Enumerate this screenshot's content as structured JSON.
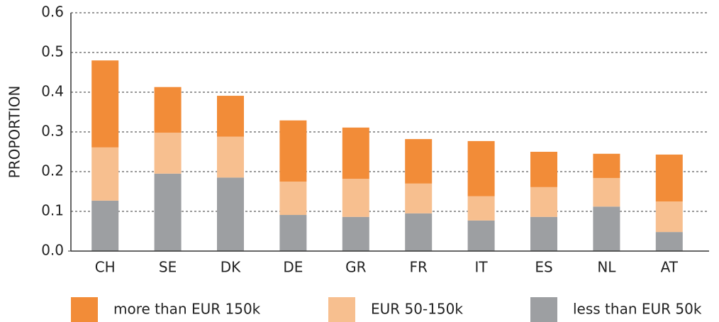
{
  "chart_data": {
    "type": "stacked_bar",
    "y_label": "PROPORTION",
    "categories": [
      "CH",
      "SE",
      "DK",
      "DE",
      "GR",
      "FR",
      "IT",
      "ES",
      "NL",
      "AT"
    ],
    "series": [
      {
        "name": "less than EUR 50k",
        "color": "#9d9fa2",
        "values": [
          0.127,
          0.195,
          0.185,
          0.091,
          0.086,
          0.095,
          0.077,
          0.086,
          0.112,
          0.048
        ]
      },
      {
        "name": "EUR 50-150k",
        "color": "#f7bf8f",
        "values": [
          0.134,
          0.103,
          0.103,
          0.084,
          0.096,
          0.075,
          0.061,
          0.075,
          0.072,
          0.077
        ]
      },
      {
        "name": "more than EUR 150k",
        "color": "#f28c38",
        "values": [
          0.219,
          0.115,
          0.103,
          0.154,
          0.129,
          0.112,
          0.139,
          0.089,
          0.061,
          0.118
        ]
      }
    ],
    "ylim": [
      0,
      0.6
    ],
    "yticks": [
      {
        "value": 0,
        "label": "0.0"
      },
      0.1,
      0.2,
      0.3,
      0.4,
      0.5,
      0.6
    ],
    "grid": true,
    "legend": "bottom"
  }
}
